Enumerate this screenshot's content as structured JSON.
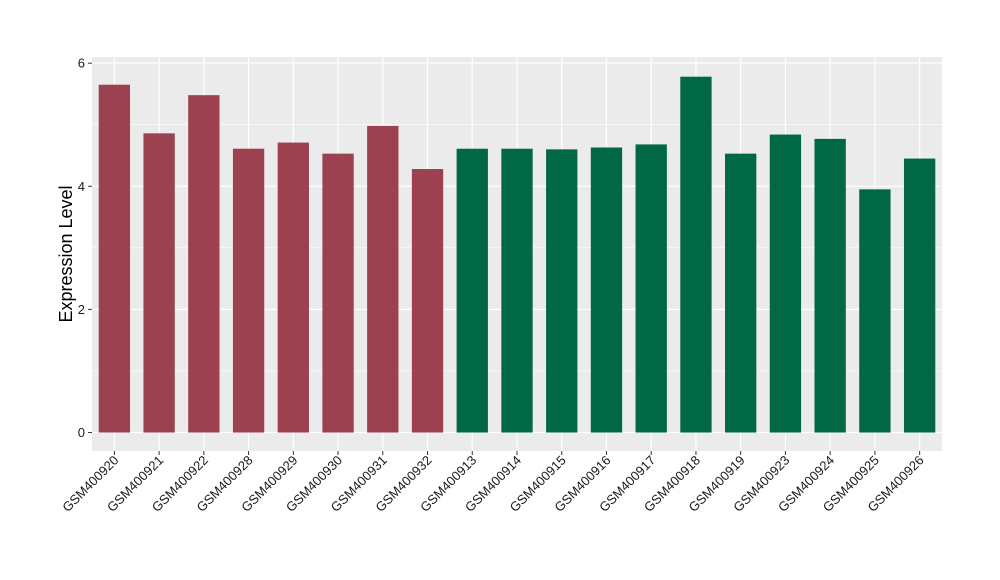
{
  "chart_data": {
    "type": "bar",
    "title": "",
    "xlabel": "",
    "ylabel": "Expression Level",
    "ylim": [
      -0.3,
      6.1
    ],
    "yticks": [
      0,
      2,
      4,
      6
    ],
    "grid": true,
    "legend": "none",
    "categories": [
      "GSM400920",
      "GSM400921",
      "GSM400922",
      "GSM400928",
      "GSM400929",
      "GSM400930",
      "GSM400931",
      "GSM400932",
      "GSM400913",
      "GSM400914",
      "GSM400915",
      "GSM400916",
      "GSM400917",
      "GSM400918",
      "GSM400919",
      "GSM400923",
      "GSM400924",
      "GSM400925",
      "GSM400926"
    ],
    "values": [
      5.65,
      4.86,
      5.48,
      4.61,
      4.71,
      4.53,
      4.98,
      4.28,
      4.61,
      4.61,
      4.6,
      4.63,
      4.68,
      5.78,
      4.53,
      4.84,
      4.77,
      3.95,
      4.45
    ],
    "bar_colors": [
      "#9b4150",
      "#9b4150",
      "#9b4150",
      "#9b4150",
      "#9b4150",
      "#9b4150",
      "#9b4150",
      "#9b4150",
      "#006845",
      "#006845",
      "#006845",
      "#006845",
      "#006845",
      "#006845",
      "#006845",
      "#006845",
      "#006845",
      "#006845",
      "#006845"
    ],
    "panel_background": "#ebebeb",
    "grid_color": "#ffffff"
  }
}
